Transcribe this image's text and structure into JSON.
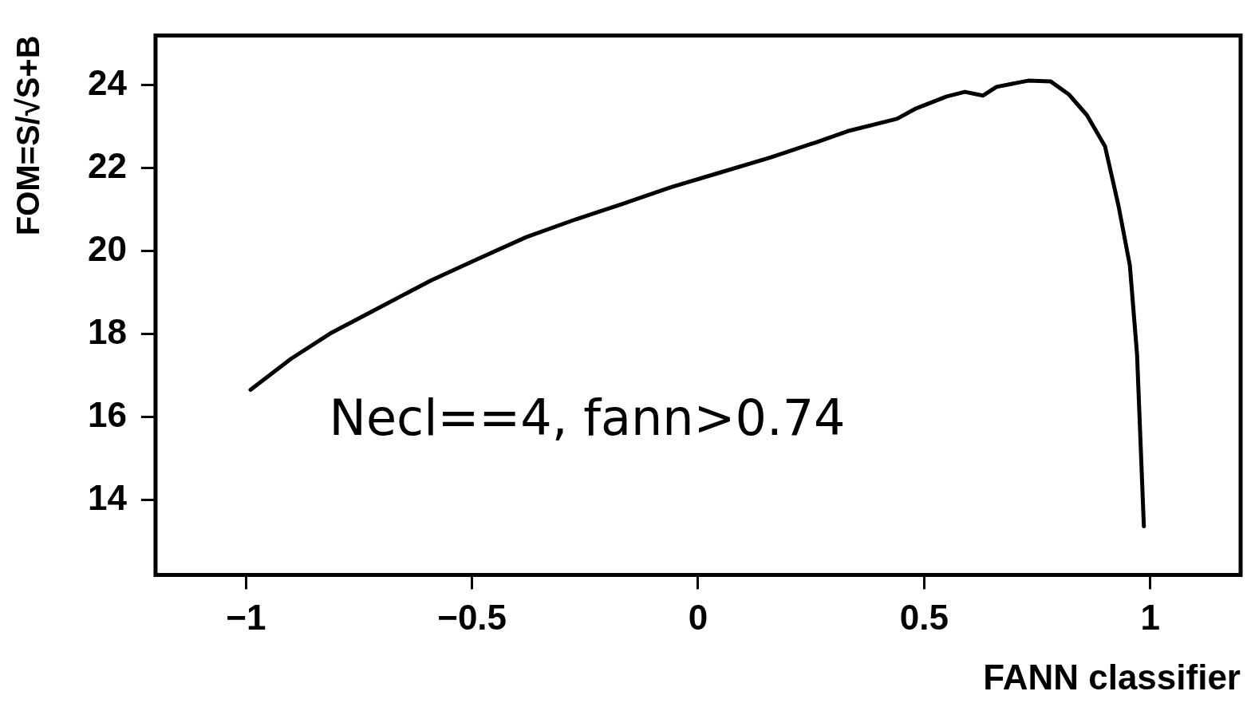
{
  "chart_data": {
    "type": "line",
    "xlabel": "FANN classifier",
    "ylabel": "FOM=S/√S+B",
    "annotations": [
      "Necl==4, fann>0.74"
    ],
    "xlim": [
      -1.2,
      1.2
    ],
    "xticks": [
      -1,
      -0.5,
      0,
      0.5,
      1
    ],
    "ylim": [
      12.2,
      25.2
    ],
    "yticks": [
      14,
      16,
      18,
      20,
      22,
      24
    ],
    "grid": false,
    "legend": false,
    "marker": "none",
    "line_style": "solid",
    "series": [
      {
        "color": "#000000",
        "x": [
          -0.99,
          -0.9,
          -0.81,
          -0.7,
          -0.59,
          -0.49,
          -0.38,
          -0.27,
          -0.17,
          -0.06,
          0.05,
          0.16,
          0.26,
          0.33,
          0.44,
          0.48,
          0.55,
          0.59,
          0.63,
          0.66,
          0.73,
          0.78,
          0.82,
          0.86,
          0.9,
          0.93,
          0.955,
          0.971,
          0.986
        ],
        "values": [
          16.66,
          17.41,
          18.04,
          18.67,
          19.3,
          19.8,
          20.34,
          20.77,
          21.13,
          21.54,
          21.9,
          22.26,
          22.62,
          22.89,
          23.19,
          23.43,
          23.73,
          23.84,
          23.75,
          23.96,
          24.11,
          24.09,
          23.78,
          23.28,
          22.53,
          21.09,
          19.66,
          17.5,
          13.37
        ]
      }
    ]
  }
}
